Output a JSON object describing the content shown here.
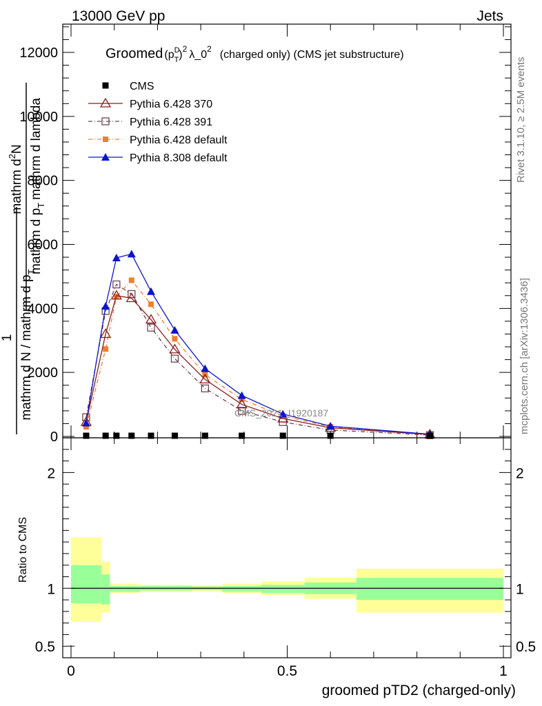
{
  "header": {
    "left": "13000 GeV pp",
    "right": "Jets"
  },
  "side_text": {
    "top": "Rivet 3.1.10, ≥ 2.5M events",
    "bottom": "mcplots.cern.ch [arXiv:1306.3436]"
  },
  "main_title": {
    "word": "Groomed",
    "p": "(p",
    "sup_d": "D",
    "sub_t": "T",
    "close": ")",
    "sup_2": "2",
    "lambda": "λ_0",
    "sup_2b": "2",
    "rest": "(charged only) (CMS jet substructure)"
  },
  "watermark": "CMS_2021_I1920187",
  "colors": {
    "cms": "#000000",
    "p6_370": "#8b1a1a",
    "p6_391": "#6b4552",
    "p6_default": "#ef7f2e",
    "p8_default": "#0a14d2",
    "band_yellow": "#ffff99",
    "band_green": "#99ff99"
  },
  "chart_data": [
    {
      "type": "line",
      "ylabel_lines": [
        "mathrm d²N",
        "mathrm d p_T mathrm d lambda",
        "1",
        "mathrm d N / mathrm d p_T mathrm d p_T"
      ],
      "ylabel_main_numer": "mathrm d²N",
      "ylabel_main_denom": "mathrm d p_T mathrm d p_T",
      "ylabel_frac_numer": "1",
      "ylabel_frac_denom": "mathrm d N / mathrm d p_T",
      "ylabel_num_top": "mathrm d",
      "ylabel_num_sup": "2",
      "ylabel_num_n": "N",
      "ylabel_den_a": "mathrm d p",
      "ylabel_den_sub": "T",
      "ylabel_den_b": "mathrm d lambda",
      "ylabel_outer_num": "1",
      "ylabel_outer_den": "mathrm d N / mathrm d p",
      "ylabel_outer_sub": "T",
      "xlim": [
        0,
        1
      ],
      "ylim": [
        0,
        12000
      ],
      "yticks": [
        0,
        2000,
        4000,
        6000,
        8000,
        10000,
        12000
      ],
      "ytick_labels": [
        "0",
        "2000",
        "4000",
        "6000",
        "8000",
        "10000",
        "12000"
      ],
      "x": [
        0.035,
        0.08,
        0.105,
        0.14,
        0.185,
        0.24,
        0.31,
        0.395,
        0.49,
        0.6,
        0.83
      ],
      "series": [
        {
          "name": "CMS",
          "key": "cms",
          "marker": "filled-square",
          "values": [
            0,
            0,
            0,
            0,
            0,
            0,
            0,
            0,
            0,
            0,
            0
          ]
        },
        {
          "name": "Pythia 6.428 370",
          "key": "p6_370",
          "marker": "open-triangle",
          "values": [
            450,
            3200,
            4400,
            4320,
            3650,
            2720,
            1780,
            1000,
            560,
            270,
            60
          ]
        },
        {
          "name": "Pythia 6.428 391",
          "key": "p6_391",
          "marker": "open-square",
          "values": [
            600,
            3920,
            4750,
            4450,
            3400,
            2430,
            1500,
            800,
            450,
            200,
            40
          ]
        },
        {
          "name": "Pythia 6.428 default",
          "key": "p6_default",
          "marker": "filled-square-small",
          "values": [
            300,
            2730,
            4370,
            4880,
            4130,
            3050,
            1930,
            1160,
            640,
            300,
            60
          ]
        },
        {
          "name": "Pythia 8.308 default",
          "key": "p8_default",
          "marker": "filled-triangle",
          "values": [
            420,
            4070,
            5580,
            5700,
            4530,
            3320,
            2120,
            1280,
            700,
            320,
            70
          ]
        }
      ]
    },
    {
      "type": "area",
      "ylabel": "Ratio to CMS",
      "xlabel": "groomed pTD2 (charged-only)",
      "xlim": [
        0,
        1
      ],
      "ylim": [
        0.4,
        2.3
      ],
      "yticks": [
        0.5,
        1,
        2
      ],
      "ytick_labels": [
        "0.5",
        "1",
        "2"
      ],
      "xticks": [
        0,
        0.5,
        1
      ],
      "xtick_labels": [
        "0",
        "0.5",
        "1"
      ],
      "bins": [
        {
          "x0": 0.0,
          "x1": 0.07,
          "green": [
            0.87,
            1.2
          ],
          "yellow": [
            0.71,
            1.44
          ]
        },
        {
          "x0": 0.07,
          "x1": 0.09,
          "green": [
            0.86,
            1.12
          ],
          "yellow": [
            0.79,
            1.23
          ]
        },
        {
          "x0": 0.09,
          "x1": 0.12,
          "green": [
            0.97,
            1.02
          ],
          "yellow": [
            0.96,
            1.04
          ]
        },
        {
          "x0": 0.12,
          "x1": 0.16,
          "green": [
            0.97,
            1.02
          ],
          "yellow": [
            0.96,
            1.04
          ]
        },
        {
          "x0": 0.16,
          "x1": 0.21,
          "green": [
            0.98,
            1.02
          ],
          "yellow": [
            0.97,
            1.03
          ]
        },
        {
          "x0": 0.21,
          "x1": 0.28,
          "green": [
            0.98,
            1.02
          ],
          "yellow": [
            0.97,
            1.03
          ]
        },
        {
          "x0": 0.28,
          "x1": 0.35,
          "green": [
            0.985,
            1.015
          ],
          "yellow": [
            0.975,
            1.025
          ]
        },
        {
          "x0": 0.35,
          "x1": 0.44,
          "green": [
            0.97,
            1.02
          ],
          "yellow": [
            0.96,
            1.04
          ]
        },
        {
          "x0": 0.44,
          "x1": 0.54,
          "green": [
            0.96,
            1.03
          ],
          "yellow": [
            0.94,
            1.06
          ]
        },
        {
          "x0": 0.54,
          "x1": 0.66,
          "green": [
            0.95,
            1.05
          ],
          "yellow": [
            0.91,
            1.09
          ]
        },
        {
          "x0": 0.66,
          "x1": 1.0,
          "green": [
            0.9,
            1.09
          ],
          "yellow": [
            0.79,
            1.17
          ]
        }
      ]
    }
  ]
}
